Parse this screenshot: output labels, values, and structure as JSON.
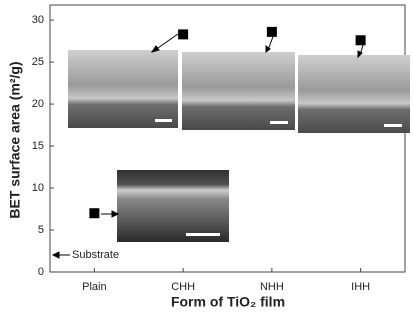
{
  "chart_data": {
    "type": "scatter",
    "x_label": "Form of TiO₂ film",
    "y_label": "BET surface area (m²/g)",
    "categories": [
      "Plain",
      "CHH",
      "NHH",
      "IHH"
    ],
    "values": [
      7,
      28.3,
      28.6,
      27.6
    ],
    "color": "#000000",
    "ylim": [
      0,
      31.8
    ],
    "yticks": [
      0,
      5,
      10,
      15,
      20,
      25,
      30
    ],
    "annotations": [
      "Substrate"
    ]
  }
}
